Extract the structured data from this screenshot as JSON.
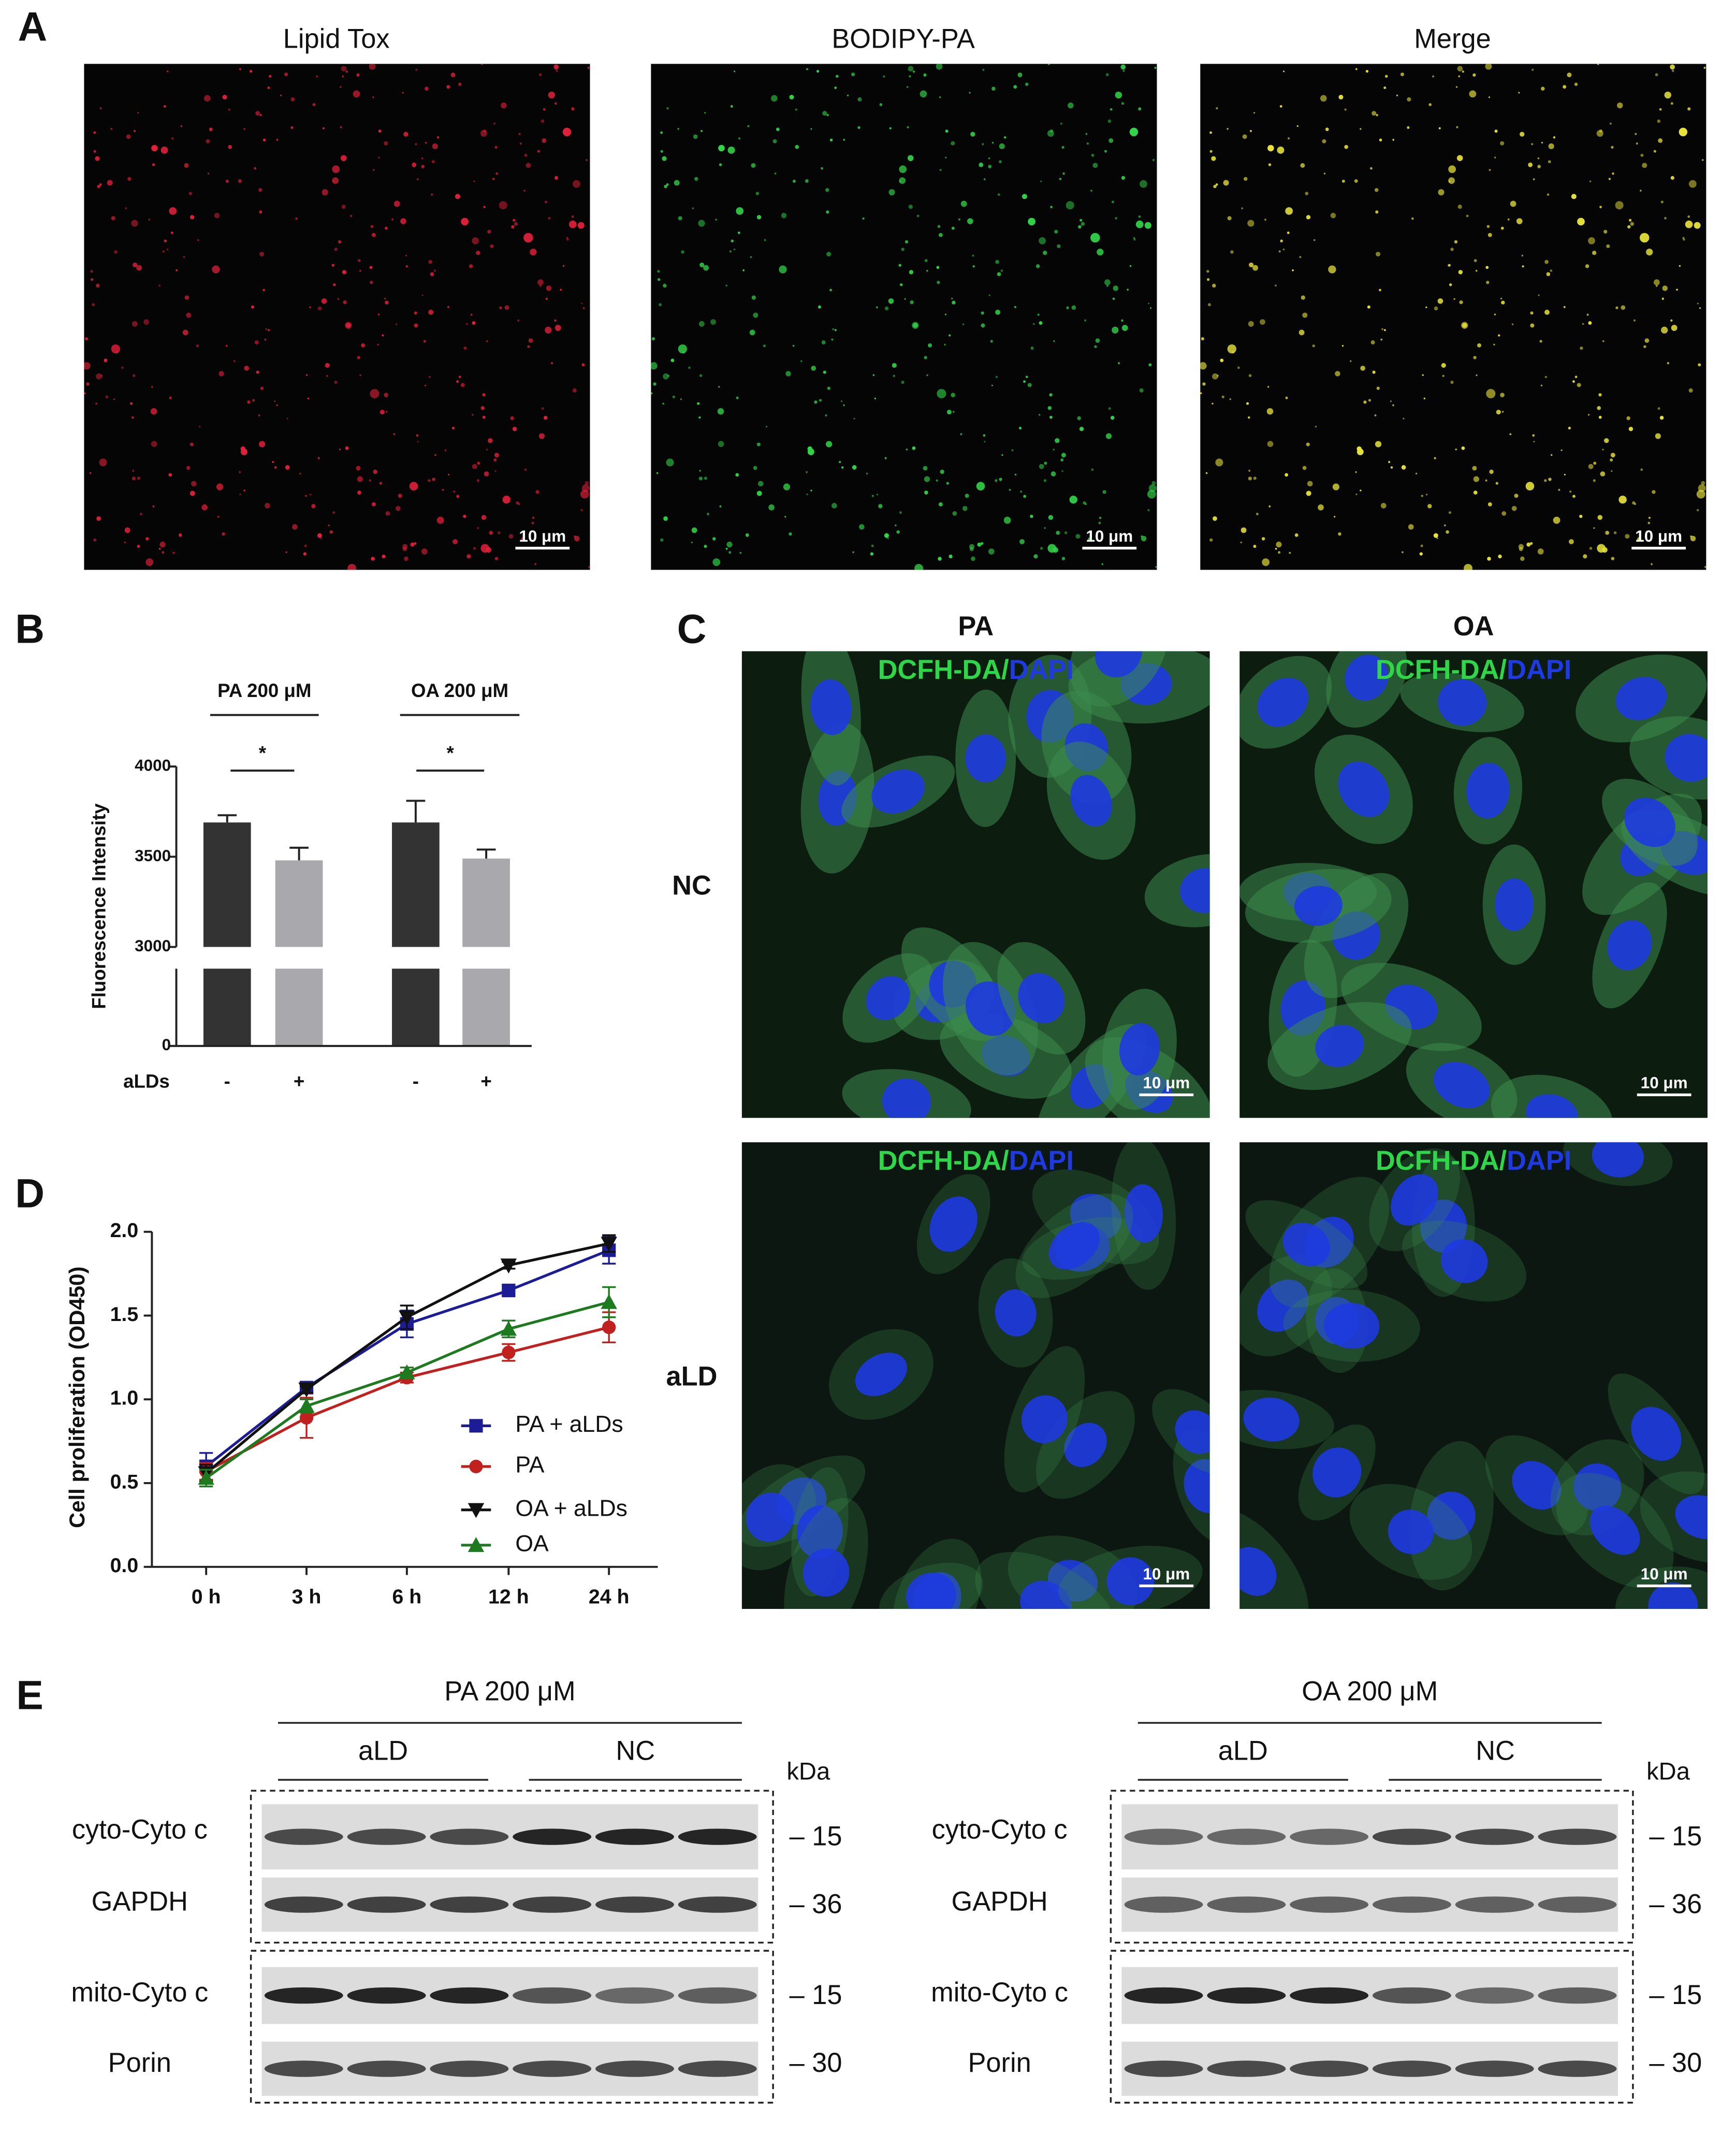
{
  "panel_labels": [
    "A",
    "B",
    "C",
    "D",
    "E"
  ],
  "panel_a": {
    "titles": [
      "Lipid Tox",
      "BODIPY-PA",
      "Merge"
    ],
    "scale_bar": "10 μm"
  },
  "chart_data": [
    {
      "type": "bar",
      "groups": [
        "PA 200 μM",
        "OA 200 μM"
      ],
      "row_label": "aLDs",
      "categories": [
        "-",
        "+",
        "-",
        "+"
      ],
      "y_label": "Fluorescence Intensity",
      "values": [
        3690,
        3480,
        3690,
        3490
      ],
      "errors": [
        40,
        70,
        120,
        50
      ],
      "colors": [
        "#333333",
        "#a9a9ad",
        "#333333",
        "#a9a9ad"
      ],
      "significance": [
        "*",
        "*"
      ],
      "ylim": [
        0,
        4000
      ],
      "ybreak": 3000,
      "yticks": [
        0,
        3000,
        3500,
        4000
      ]
    },
    {
      "type": "line",
      "y_label": "Cell proliferation (OD450)",
      "categories": [
        "0 h",
        "3 h",
        "6 h",
        "12 h",
        "24 h"
      ],
      "series": [
        {
          "name": "PA + aLDs",
          "color": "#1c1c96",
          "marker": "square",
          "values": [
            0.6,
            1.07,
            1.45,
            1.65,
            1.89
          ],
          "errors": [
            0.08,
            0.02,
            0.08,
            0.03,
            0.08
          ]
        },
        {
          "name": "PA",
          "color": "#c0201e",
          "marker": "circle",
          "values": [
            0.57,
            0.89,
            1.13,
            1.28,
            1.43
          ],
          "errors": [
            0.05,
            0.12,
            0.03,
            0.05,
            0.09
          ]
        },
        {
          "name": "OA + aLDs",
          "color": "#111111",
          "marker": "triangle-down",
          "values": [
            0.56,
            1.06,
            1.49,
            1.8,
            1.93
          ],
          "errors": [
            0.05,
            0.02,
            0.07,
            0.02,
            0.05
          ]
        },
        {
          "name": "OA",
          "color": "#1e7a1e",
          "marker": "triangle-up",
          "values": [
            0.53,
            0.96,
            1.16,
            1.42,
            1.58
          ],
          "errors": [
            0.05,
            0.04,
            0.03,
            0.05,
            0.09
          ]
        }
      ],
      "ylim": [
        0,
        2
      ],
      "yticks": [
        {
          "value": 0,
          "label": "0.0"
        },
        0.5,
        {
          "value": 1,
          "label": "1.0"
        },
        1.5,
        {
          "value": 2,
          "label": "2.0"
        }
      ]
    }
  ],
  "panel_c": {
    "columns": [
      "PA",
      "OA"
    ],
    "rows": [
      "NC",
      "aLD"
    ],
    "stain_green": "DCFH-DA",
    "separator": "/",
    "stain_blue": "DAPI",
    "scale_bar": "10 μm"
  },
  "panel_e": {
    "unit": "kDa",
    "blots": [
      {
        "title": "PA 200 μM",
        "groups": [
          "aLD",
          "NC"
        ],
        "rows": [
          {
            "label": "cyto-Cyto c",
            "marker": "– 15"
          },
          {
            "label": "GAPDH",
            "marker": "– 36"
          },
          {
            "label": "mito-Cyto c",
            "marker": "– 15"
          },
          {
            "label": "Porin",
            "marker": "– 30"
          }
        ]
      },
      {
        "title": "OA 200 μM",
        "groups": [
          "aLD",
          "NC"
        ],
        "rows": [
          {
            "label": "cyto-Cyto c",
            "marker": "– 15"
          },
          {
            "label": "GAPDH",
            "marker": "– 36"
          },
          {
            "label": "mito-Cyto c",
            "marker": "– 15"
          },
          {
            "label": "Porin",
            "marker": "– 30"
          }
        ]
      }
    ]
  }
}
